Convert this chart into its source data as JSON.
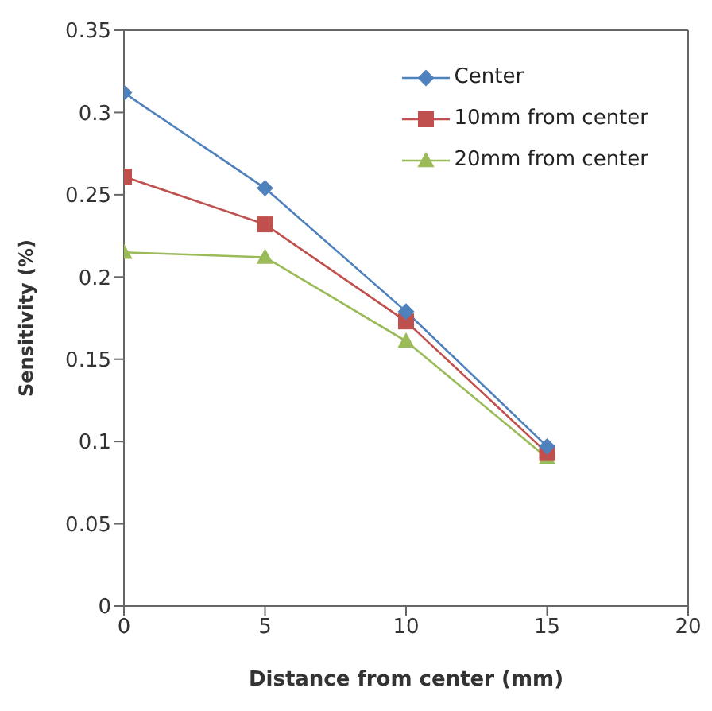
{
  "chart_data": {
    "type": "line",
    "xlabel": "Distance from center (mm)",
    "ylabel": "Sensitivity (%)",
    "x": [
      0,
      5,
      10,
      15
    ],
    "series": [
      {
        "name": "Center",
        "color": "#4f81bd",
        "marker": "diamond",
        "values": [
          0.312,
          0.254,
          0.179,
          0.097
        ]
      },
      {
        "name": "10mm from center",
        "color": "#c0504d",
        "marker": "square",
        "values": [
          0.261,
          0.232,
          0.173,
          0.093
        ]
      },
      {
        "name": "20mm from center",
        "color": "#9bbb59",
        "marker": "triangle",
        "values": [
          0.215,
          0.212,
          0.161,
          0.09
        ]
      }
    ],
    "xlim": [
      0,
      20
    ],
    "xticks": [
      0,
      5,
      10,
      15,
      20
    ],
    "ylim": [
      0,
      0.35
    ],
    "yticks": [
      0,
      0.05,
      0.1,
      0.15,
      0.2,
      0.25,
      0.3,
      0.35
    ],
    "grid": false,
    "legend": "top right",
    "line_style": "solid"
  }
}
